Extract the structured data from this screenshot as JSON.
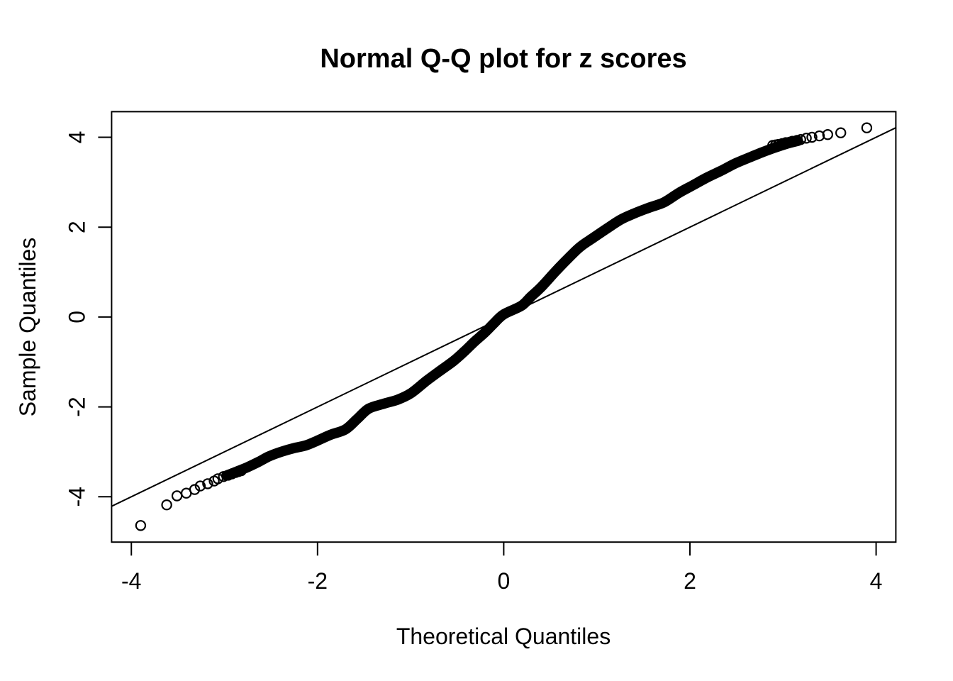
{
  "figure": {
    "background_color": "#ffffff",
    "foreground_color": "#000000"
  },
  "chart_data": {
    "type": "scatter",
    "subtype": "normal-qq-plot",
    "title": "Normal Q-Q plot for z scores",
    "xlabel": "Theoretical Quantiles",
    "ylabel": "Sample Quantiles",
    "xlim": [
      -4.212,
      4.212
    ],
    "ylim": [
      -5.009,
      4.57
    ],
    "xticks": [
      -4,
      -2,
      0,
      2,
      4
    ],
    "yticks": [
      -4,
      -2,
      0,
      2,
      4
    ],
    "grid": false,
    "legend": null,
    "reference_line": {
      "slope": 1.0,
      "intercept": 0.0
    },
    "band_centerline": [
      [
        -2.98,
        -3.53
      ],
      [
        -2.88,
        -3.45
      ],
      [
        -2.75,
        -3.34
      ],
      [
        -2.63,
        -3.22
      ],
      [
        -2.52,
        -3.1
      ],
      [
        -2.39,
        -3.0
      ],
      [
        -2.26,
        -2.92
      ],
      [
        -2.13,
        -2.86
      ],
      [
        -2.01,
        -2.76
      ],
      [
        -1.86,
        -2.62
      ],
      [
        -1.7,
        -2.5
      ],
      [
        -1.57,
        -2.26
      ],
      [
        -1.45,
        -2.04
      ],
      [
        -1.29,
        -1.93
      ],
      [
        -1.14,
        -1.84
      ],
      [
        -1.0,
        -1.7
      ],
      [
        -0.83,
        -1.42
      ],
      [
        -0.7,
        -1.22
      ],
      [
        -0.54,
        -0.98
      ],
      [
        -0.42,
        -0.76
      ],
      [
        -0.31,
        -0.54
      ],
      [
        -0.2,
        -0.34
      ],
      [
        -0.1,
        -0.13
      ],
      [
        0.0,
        0.06
      ],
      [
        0.19,
        0.25
      ],
      [
        0.29,
        0.45
      ],
      [
        0.4,
        0.66
      ],
      [
        0.55,
        1.0
      ],
      [
        0.68,
        1.28
      ],
      [
        0.82,
        1.56
      ],
      [
        0.96,
        1.76
      ],
      [
        1.11,
        1.97
      ],
      [
        1.26,
        2.17
      ],
      [
        1.42,
        2.32
      ],
      [
        1.57,
        2.44
      ],
      [
        1.72,
        2.55
      ],
      [
        1.88,
        2.76
      ],
      [
        2.03,
        2.93
      ],
      [
        2.18,
        3.1
      ],
      [
        2.34,
        3.26
      ],
      [
        2.49,
        3.42
      ],
      [
        2.65,
        3.56
      ],
      [
        2.77,
        3.66
      ],
      [
        2.9,
        3.76
      ],
      [
        3.03,
        3.85
      ],
      [
        3.16,
        3.92
      ]
    ],
    "left_tail_points": [
      [
        -3.9,
        -4.64
      ],
      [
        -3.62,
        -4.18
      ],
      [
        -3.51,
        -3.98
      ],
      [
        -3.41,
        -3.92
      ],
      [
        -3.32,
        -3.84
      ],
      [
        -3.26,
        -3.76
      ],
      [
        -3.18,
        -3.71
      ],
      [
        -3.11,
        -3.65
      ],
      [
        -3.07,
        -3.6
      ],
      [
        -3.01,
        -3.55
      ],
      [
        -2.96,
        -3.52
      ],
      [
        -2.92,
        -3.49
      ],
      [
        -2.88,
        -3.46
      ],
      [
        -2.85,
        -3.44
      ],
      [
        -2.82,
        -3.42
      ]
    ],
    "right_tail_points": [
      [
        3.9,
        4.21
      ],
      [
        3.62,
        4.1
      ],
      [
        3.48,
        4.06
      ],
      [
        3.39,
        4.03
      ],
      [
        3.31,
        4.0
      ],
      [
        3.25,
        3.98
      ],
      [
        3.19,
        3.95
      ],
      [
        3.15,
        3.93
      ],
      [
        3.1,
        3.91
      ],
      [
        3.07,
        3.89
      ],
      [
        3.03,
        3.88
      ],
      [
        2.99,
        3.86
      ],
      [
        2.95,
        3.84
      ],
      [
        2.92,
        3.83
      ],
      [
        2.89,
        3.82
      ]
    ]
  }
}
